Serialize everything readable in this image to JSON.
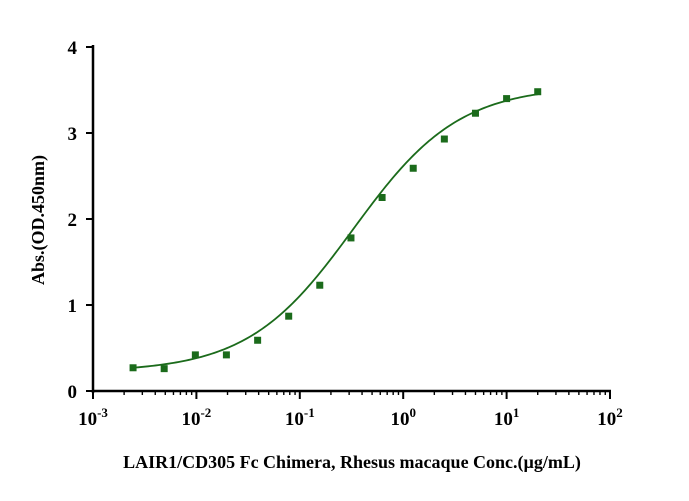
{
  "chart_data": {
    "type": "scatter",
    "title": "",
    "xlabel": "LAIR1/CD305 Fc Chimera, Rhesus macaque Conc.(µg/mL)",
    "ylabel": "Abs.(OD.450nm)",
    "xscale": "log",
    "xlim": [
      0.001,
      100
    ],
    "ylim": [
      0,
      4
    ],
    "x_ticks": [
      {
        "value": 0.001,
        "base": "10",
        "exp": "-3"
      },
      {
        "value": 0.01,
        "base": "10",
        "exp": "-2"
      },
      {
        "value": 0.1,
        "base": "10",
        "exp": "-1"
      },
      {
        "value": 1,
        "base": "10",
        "exp": "0"
      },
      {
        "value": 10,
        "base": "10",
        "exp": "1"
      },
      {
        "value": 100,
        "base": "10",
        "exp": "2"
      }
    ],
    "y_ticks": [
      0,
      1,
      2,
      3,
      4
    ],
    "grid": false,
    "color": "#1b6b1b",
    "series": [
      {
        "marker": "square",
        "fit": "4PL sigmoid",
        "points": [
          {
            "x": 0.00244,
            "y": 0.27
          },
          {
            "x": 0.00488,
            "y": 0.26
          },
          {
            "x": 0.00977,
            "y": 0.42
          },
          {
            "x": 0.0195,
            "y": 0.42
          },
          {
            "x": 0.0391,
            "y": 0.59
          },
          {
            "x": 0.0781,
            "y": 0.87
          },
          {
            "x": 0.156,
            "y": 1.23
          },
          {
            "x": 0.3125,
            "y": 1.78
          },
          {
            "x": 0.625,
            "y": 2.25
          },
          {
            "x": 1.25,
            "y": 2.59
          },
          {
            "x": 2.5,
            "y": 2.93
          },
          {
            "x": 5,
            "y": 3.23
          },
          {
            "x": 10,
            "y": 3.4
          },
          {
            "x": 20,
            "y": 3.48
          }
        ]
      }
    ]
  }
}
